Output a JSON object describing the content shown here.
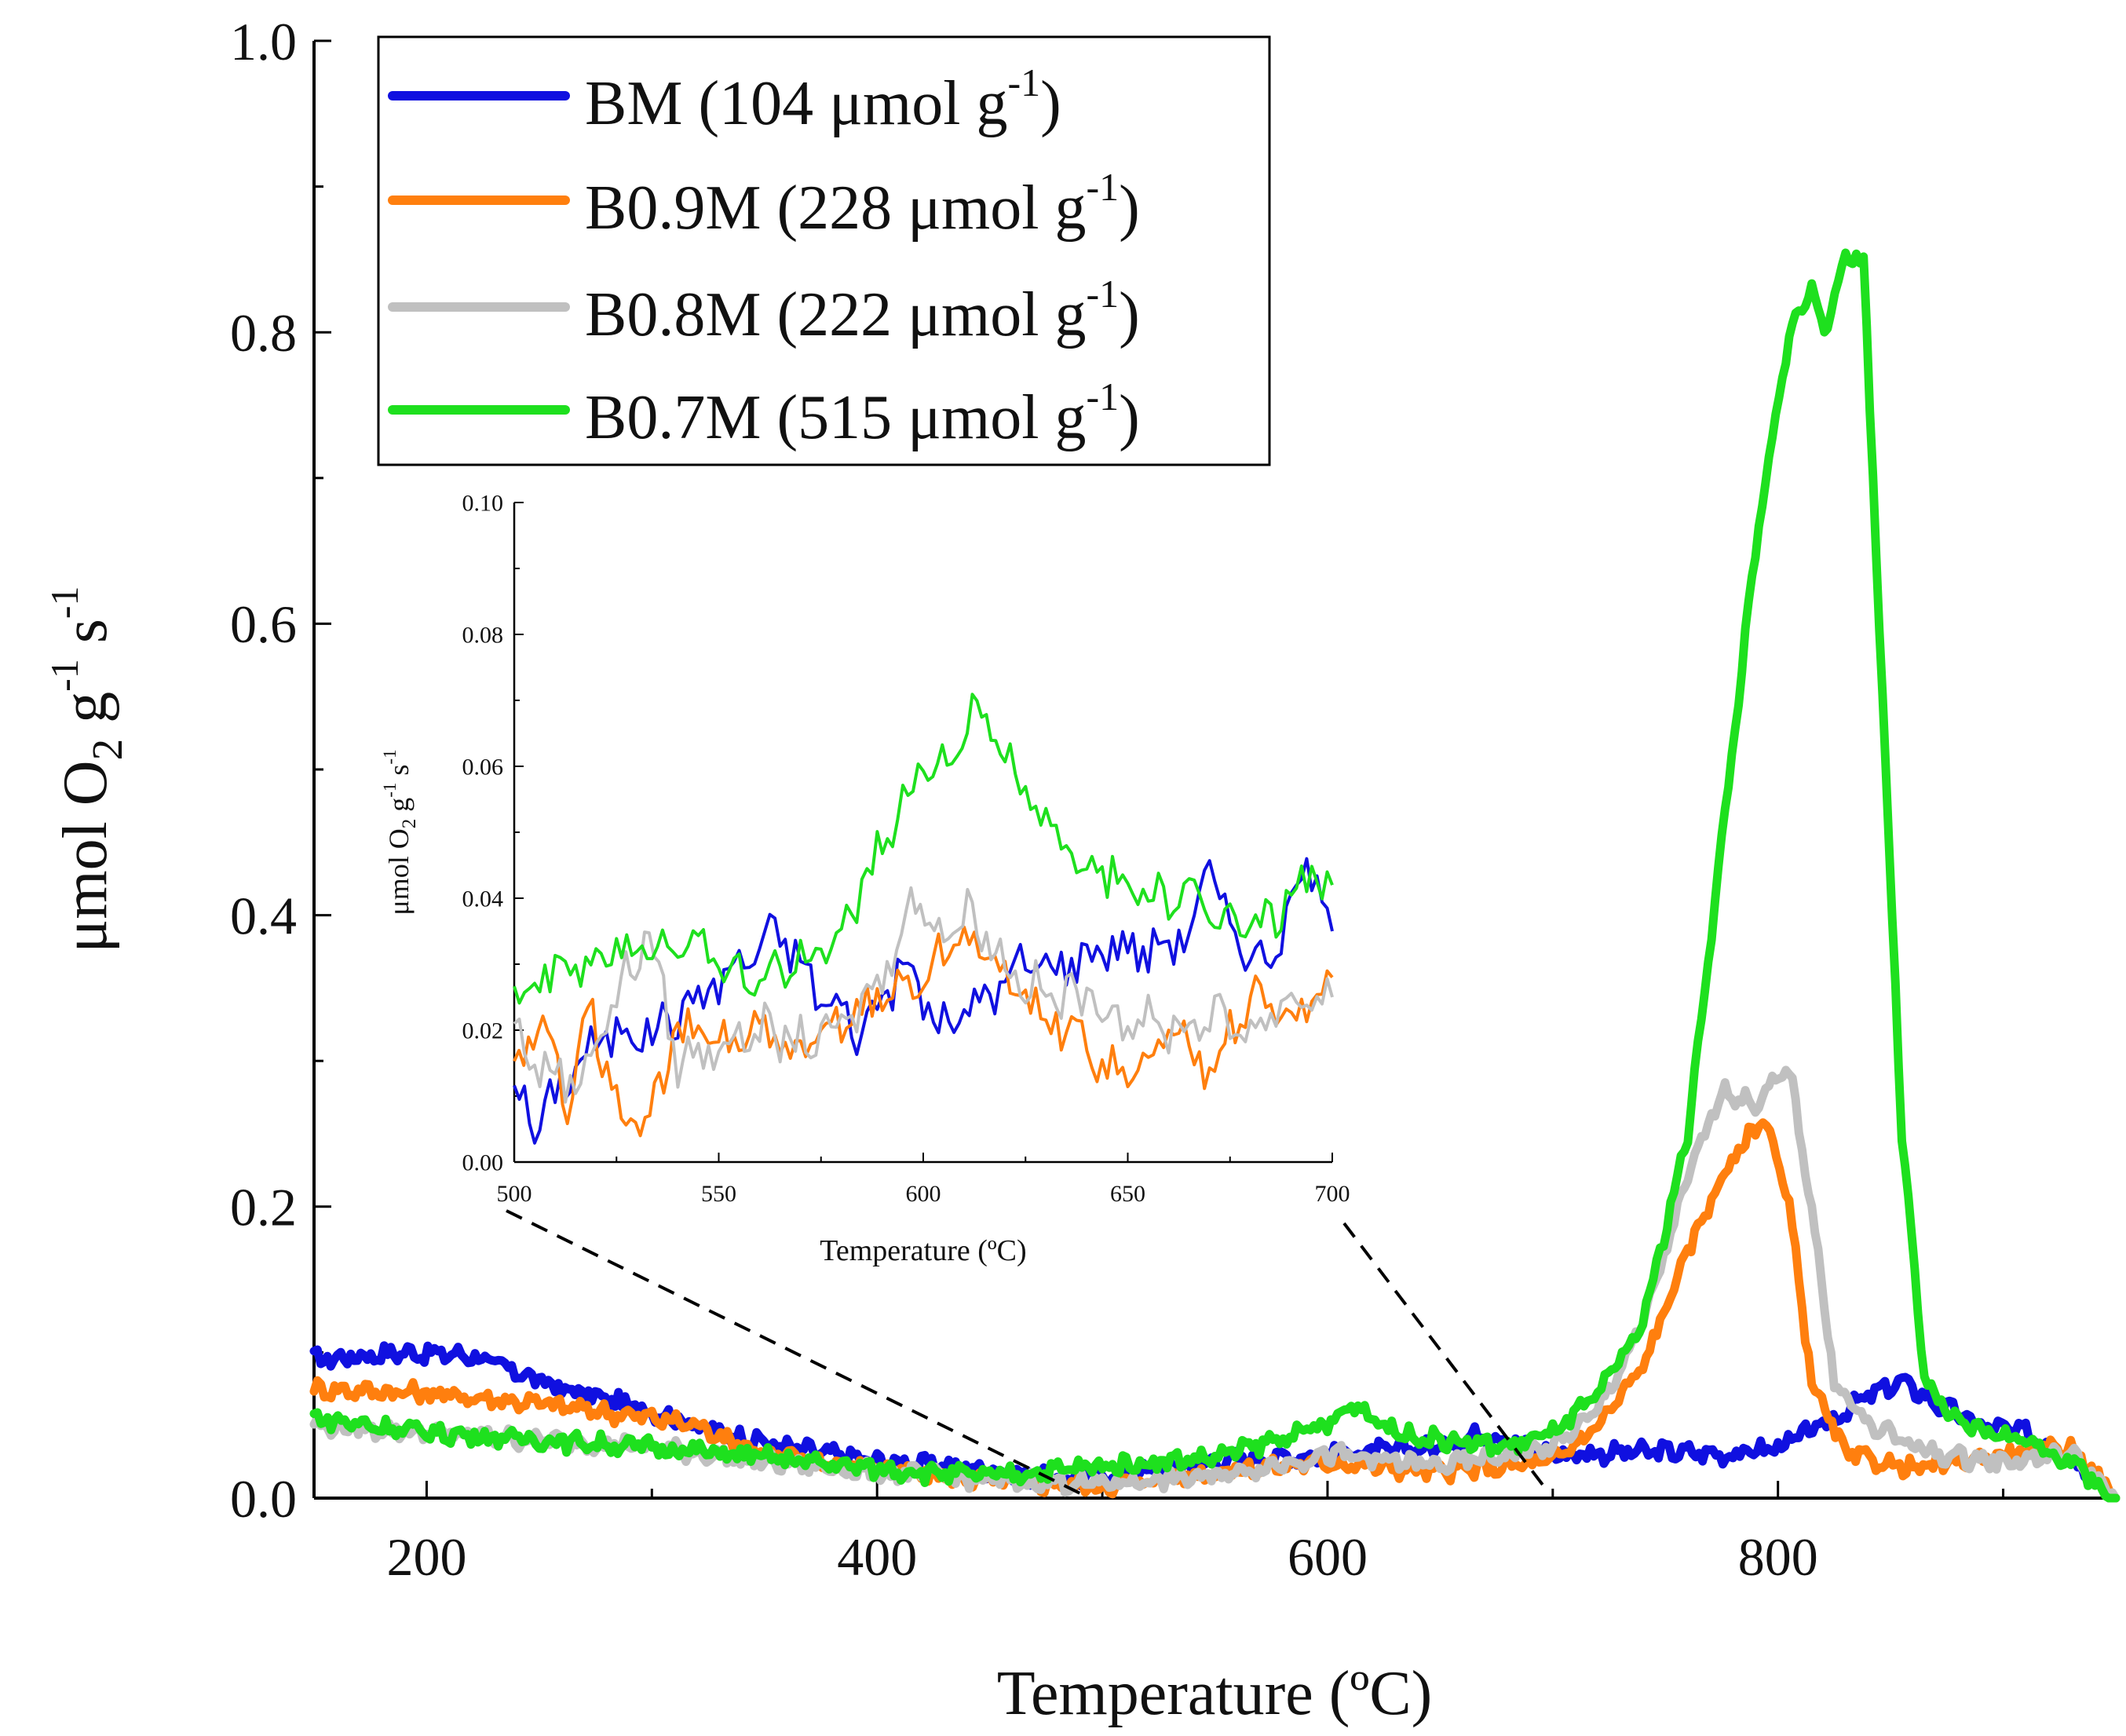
{
  "chart_data": {
    "type": "line",
    "xlabel": "Temperature (ºC)",
    "ylabel_parts": [
      "μmol O",
      "2",
      " g",
      "-1",
      " s",
      "-1"
    ],
    "xlim": [
      150,
      950
    ],
    "ylim": [
      0,
      1.0
    ],
    "x_ticks": [
      200,
      400,
      600,
      800
    ],
    "x_tick_labels": [
      "200",
      "400",
      "600",
      "800"
    ],
    "y_ticks": [
      0,
      0.2,
      0.4,
      0.6,
      0.8,
      1.0
    ],
    "y_tick_labels": [
      "0.0",
      "0.2",
      "0.4",
      "0.6",
      "0.8",
      "1.0"
    ],
    "legend_position": "top-left",
    "series": [
      {
        "name": "BM",
        "legend": {
          "prefix": "BM (104 μmol g",
          "sup": "-1",
          "suffix": ")"
        },
        "color": "#1010e0",
        "points": [
          [
            150,
            0.095
          ],
          [
            190,
            0.1
          ],
          [
            220,
            0.098
          ],
          [
            260,
            0.075
          ],
          [
            300,
            0.06
          ],
          [
            330,
            0.045
          ],
          [
            360,
            0.035
          ],
          [
            400,
            0.025
          ],
          [
            450,
            0.02
          ],
          [
            480,
            0.012
          ],
          [
            500,
            0.015
          ],
          [
            550,
            0.025
          ],
          [
            600,
            0.03
          ],
          [
            650,
            0.035
          ],
          [
            670,
            0.045
          ],
          [
            700,
            0.03
          ],
          [
            750,
            0.032
          ],
          [
            780,
            0.03
          ],
          [
            800,
            0.035
          ],
          [
            820,
            0.05
          ],
          [
            840,
            0.07
          ],
          [
            855,
            0.08
          ],
          [
            870,
            0.065
          ],
          [
            890,
            0.05
          ],
          [
            910,
            0.045
          ],
          [
            930,
            0.03
          ],
          [
            950,
            0.0
          ]
        ]
      },
      {
        "name": "B0.9M",
        "legend": {
          "prefix": "B0.9M (228 μmol g",
          "sup": "-1",
          "suffix": ")"
        },
        "color": "#ff7f0e",
        "points": [
          [
            150,
            0.075
          ],
          [
            200,
            0.072
          ],
          [
            250,
            0.065
          ],
          [
            300,
            0.055
          ],
          [
            320,
            0.05
          ],
          [
            350,
            0.03
          ],
          [
            400,
            0.02
          ],
          [
            450,
            0.012
          ],
          [
            500,
            0.008
          ],
          [
            550,
            0.018
          ],
          [
            600,
            0.025
          ],
          [
            650,
            0.018
          ],
          [
            700,
            0.025
          ],
          [
            720,
            0.05
          ],
          [
            740,
            0.09
          ],
          [
            760,
            0.17
          ],
          [
            775,
            0.22
          ],
          [
            790,
            0.255
          ],
          [
            795,
            0.26
          ],
          [
            805,
            0.2
          ],
          [
            815,
            0.08
          ],
          [
            830,
            0.03
          ],
          [
            860,
            0.02
          ],
          [
            900,
            0.03
          ],
          [
            930,
            0.035
          ],
          [
            950,
            0.0
          ]
        ]
      },
      {
        "name": "B0.8M",
        "legend": {
          "prefix": "B0.8M (222 μmol g",
          "sup": "-1",
          "suffix": ")"
        },
        "color": "#c0c0c0",
        "points": [
          [
            150,
            0.05
          ],
          [
            200,
            0.045
          ],
          [
            250,
            0.04
          ],
          [
            300,
            0.035
          ],
          [
            350,
            0.025
          ],
          [
            400,
            0.018
          ],
          [
            450,
            0.012
          ],
          [
            500,
            0.01
          ],
          [
            550,
            0.015
          ],
          [
            600,
            0.03
          ],
          [
            650,
            0.022
          ],
          [
            700,
            0.035
          ],
          [
            720,
            0.06
          ],
          [
            740,
            0.12
          ],
          [
            760,
            0.22
          ],
          [
            775,
            0.28
          ],
          [
            790,
            0.27
          ],
          [
            805,
            0.295
          ],
          [
            815,
            0.2
          ],
          [
            825,
            0.08
          ],
          [
            840,
            0.05
          ],
          [
            870,
            0.03
          ],
          [
            900,
            0.025
          ],
          [
            930,
            0.03
          ],
          [
            950,
            0.0
          ]
        ]
      },
      {
        "name": "B0.7M",
        "legend": {
          "prefix": "B0.7M (515 μmol g",
          "sup": "-1",
          "suffix": ")"
        },
        "color": "#1ee01e",
        "points": [
          [
            150,
            0.055
          ],
          [
            200,
            0.045
          ],
          [
            250,
            0.04
          ],
          [
            300,
            0.035
          ],
          [
            350,
            0.028
          ],
          [
            400,
            0.02
          ],
          [
            450,
            0.015
          ],
          [
            500,
            0.022
          ],
          [
            550,
            0.028
          ],
          [
            600,
            0.05
          ],
          [
            612,
            0.065
          ],
          [
            630,
            0.045
          ],
          [
            650,
            0.04
          ],
          [
            680,
            0.035
          ],
          [
            700,
            0.045
          ],
          [
            720,
            0.07
          ],
          [
            740,
            0.12
          ],
          [
            760,
            0.25
          ],
          [
            775,
            0.45
          ],
          [
            790,
            0.65
          ],
          [
            805,
            0.8
          ],
          [
            815,
            0.83
          ],
          [
            822,
            0.8
          ],
          [
            830,
            0.855
          ],
          [
            838,
            0.85
          ],
          [
            845,
            0.6
          ],
          [
            855,
            0.25
          ],
          [
            865,
            0.08
          ],
          [
            880,
            0.05
          ],
          [
            910,
            0.04
          ],
          [
            930,
            0.025
          ],
          [
            950,
            0.0
          ]
        ]
      }
    ],
    "inset": {
      "xlabel": "Temperature (ºC)",
      "ylabel_parts": [
        "μmol O",
        "2",
        " g",
        "-1",
        " s",
        "-1"
      ],
      "xlim": [
        500,
        700
      ],
      "ylim": [
        0,
        0.1
      ],
      "x_ticks": [
        500,
        550,
        600,
        650,
        700
      ],
      "x_tick_labels": [
        "500",
        "550",
        "600",
        "650",
        "700"
      ],
      "y_ticks": [
        0,
        0.02,
        0.04,
        0.06,
        0.08,
        0.1
      ],
      "y_tick_labels": [
        "0.00",
        "0.02",
        "0.04",
        "0.06",
        "0.08",
        "0.10"
      ],
      "series": [
        {
          "name": "BM",
          "color": "#1010e0",
          "points": [
            [
              500,
              0.012
            ],
            [
              505,
              0.005
            ],
            [
              515,
              0.015
            ],
            [
              525,
              0.02
            ],
            [
              535,
              0.02
            ],
            [
              545,
              0.025
            ],
            [
              555,
              0.03
            ],
            [
              565,
              0.035
            ],
            [
              575,
              0.025
            ],
            [
              585,
              0.02
            ],
            [
              595,
              0.03
            ],
            [
              605,
              0.02
            ],
            [
              615,
              0.025
            ],
            [
              625,
              0.03
            ],
            [
              635,
              0.03
            ],
            [
              645,
              0.033
            ],
            [
              655,
              0.032
            ],
            [
              665,
              0.035
            ],
            [
              670,
              0.045
            ],
            [
              675,
              0.035
            ],
            [
              685,
              0.03
            ],
            [
              690,
              0.04
            ],
            [
              695,
              0.044
            ],
            [
              700,
              0.035
            ]
          ]
        },
        {
          "name": "B0.9M",
          "color": "#ff7f0e",
          "points": [
            [
              500,
              0.015
            ],
            [
              507,
              0.02
            ],
            [
              513,
              0.01
            ],
            [
              518,
              0.025
            ],
            [
              525,
              0.008
            ],
            [
              532,
              0.005
            ],
            [
              540,
              0.02
            ],
            [
              550,
              0.018
            ],
            [
              560,
              0.02
            ],
            [
              570,
              0.015
            ],
            [
              580,
              0.022
            ],
            [
              590,
              0.025
            ],
            [
              600,
              0.028
            ],
            [
              610,
              0.035
            ],
            [
              620,
              0.028
            ],
            [
              630,
              0.022
            ],
            [
              640,
              0.018
            ],
            [
              650,
              0.012
            ],
            [
              660,
              0.02
            ],
            [
              670,
              0.015
            ],
            [
              680,
              0.025
            ],
            [
              690,
              0.022
            ],
            [
              700,
              0.028
            ]
          ]
        },
        {
          "name": "B0.8M",
          "color": "#c0c0c0",
          "points": [
            [
              500,
              0.02
            ],
            [
              505,
              0.015
            ],
            [
              515,
              0.012
            ],
            [
              525,
              0.025
            ],
            [
              533,
              0.035
            ],
            [
              540,
              0.015
            ],
            [
              550,
              0.018
            ],
            [
              560,
              0.02
            ],
            [
              570,
              0.018
            ],
            [
              580,
              0.02
            ],
            [
              590,
              0.028
            ],
            [
              597,
              0.04
            ],
            [
              605,
              0.035
            ],
            [
              612,
              0.038
            ],
            [
              620,
              0.03
            ],
            [
              630,
              0.025
            ],
            [
              640,
              0.025
            ],
            [
              650,
              0.022
            ],
            [
              660,
              0.02
            ],
            [
              670,
              0.022
            ],
            [
              680,
              0.02
            ],
            [
              690,
              0.025
            ],
            [
              700,
              0.025
            ]
          ]
        },
        {
          "name": "B0.7M",
          "color": "#1ee01e",
          "points": [
            [
              500,
              0.025
            ],
            [
              510,
              0.028
            ],
            [
              520,
              0.03
            ],
            [
              530,
              0.032
            ],
            [
              540,
              0.035
            ],
            [
              550,
              0.03
            ],
            [
              560,
              0.028
            ],
            [
              570,
              0.03
            ],
            [
              580,
              0.035
            ],
            [
              590,
              0.048
            ],
            [
              600,
              0.06
            ],
            [
              607,
              0.062
            ],
            [
              612,
              0.068
            ],
            [
              620,
              0.062
            ],
            [
              630,
              0.05
            ],
            [
              640,
              0.045
            ],
            [
              650,
              0.042
            ],
            [
              660,
              0.04
            ],
            [
              670,
              0.038
            ],
            [
              680,
              0.035
            ],
            [
              690,
              0.04
            ],
            [
              695,
              0.045
            ],
            [
              700,
              0.042
            ]
          ]
        }
      ]
    }
  }
}
